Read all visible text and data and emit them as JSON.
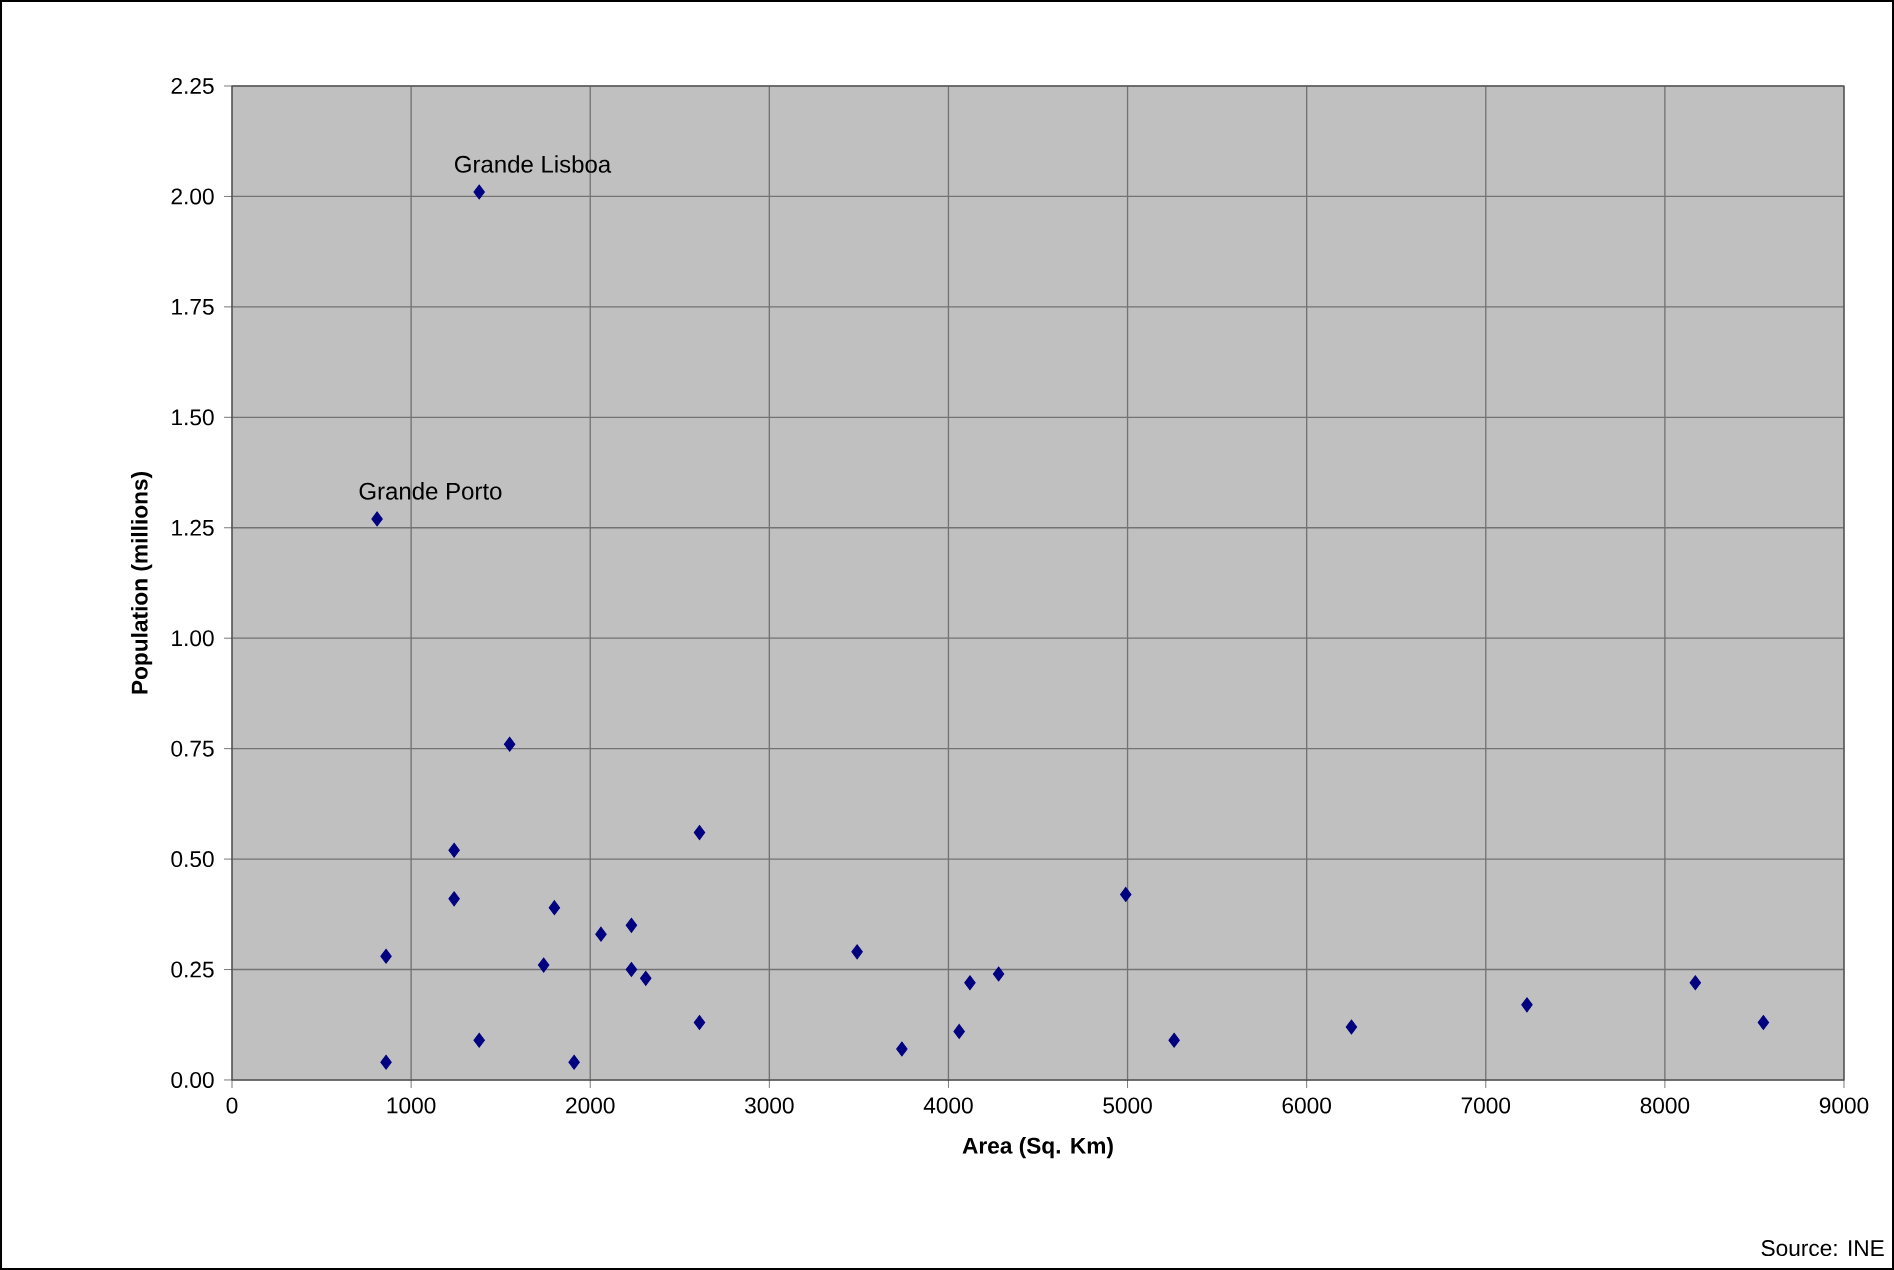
{
  "chart_data": {
    "type": "scatter",
    "xlabel": "Area (Sq. Km)",
    "ylabel": "Population (millions)",
    "x": [
      1380,
      810,
      860,
      860,
      1240,
      1240,
      1380,
      1550,
      1740,
      1800,
      1910,
      2060,
      2230,
      2230,
      2310,
      2610,
      2610,
      3490,
      3740,
      4060,
      4120,
      4280,
      4990,
      5260,
      6250,
      7230,
      8170,
      8550
    ],
    "series": [
      {
        "color": "#000080",
        "values": [
          2.01,
          1.27,
          0.28,
          0.04,
          0.52,
          0.41,
          0.09,
          0.76,
          0.26,
          0.39,
          0.04,
          0.33,
          0.35,
          0.25,
          0.23,
          0.56,
          0.13,
          0.29,
          0.07,
          0.11,
          0.22,
          0.24,
          0.42,
          0.09,
          0.12,
          0.17,
          0.22,
          0.13
        ]
      }
    ],
    "xlim": [
      0,
      9000
    ],
    "ylim": [
      0,
      2.25
    ],
    "xticks": [
      0,
      1000,
      2000,
      3000,
      4000,
      5000,
      6000,
      7000,
      8000,
      9000
    ],
    "yticks": [
      {
        "value": 0,
        "label": "0.00"
      },
      {
        "value": 0.25,
        "label": "0.25"
      },
      {
        "value": 0.5,
        "label": "0.50"
      },
      {
        "value": 0.75,
        "label": "0.75"
      },
      {
        "value": 1,
        "label": "1.00"
      },
      {
        "value": 1.25,
        "label": "1.25"
      },
      {
        "value": 1.5,
        "label": "1.50"
      },
      {
        "value": 1.75,
        "label": "1.75"
      },
      {
        "value": 2,
        "label": "2.00"
      },
      {
        "value": 2.25,
        "label": "2.25"
      }
    ],
    "grid": true,
    "marker": "diamond",
    "annotations": [
      {
        "text": "Grande Lisboa",
        "x": 1380,
        "y": 2.01
      },
      {
        "text": "Grande Porto",
        "x": 810,
        "y": 1.27
      },
      "Source: INE"
    ]
  }
}
